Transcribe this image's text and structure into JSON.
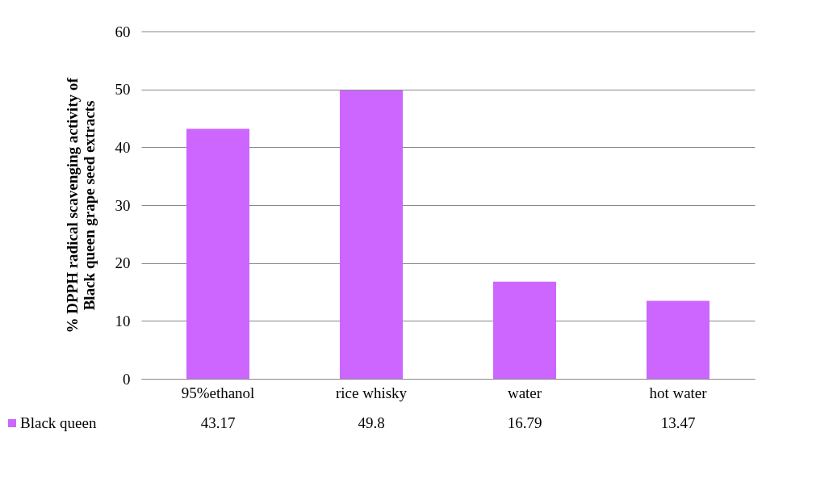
{
  "chart_data": {
    "type": "bar",
    "ylabel": "% DPPH radical scavenging activity of\nBlack queen grape seed extracts",
    "categories": [
      "95%ethanol",
      "rice whisky",
      "water",
      "hot water"
    ],
    "series": [
      {
        "name": "Black queen",
        "color": "#cc66ff",
        "values": [
          43.17,
          49.8,
          16.79,
          13.47
        ]
      }
    ],
    "ylim": [
      0,
      60
    ],
    "yticks": [
      0,
      10,
      20,
      30,
      40,
      50,
      60
    ],
    "grid": "y",
    "data_labels": true,
    "legend": "bottom"
  }
}
